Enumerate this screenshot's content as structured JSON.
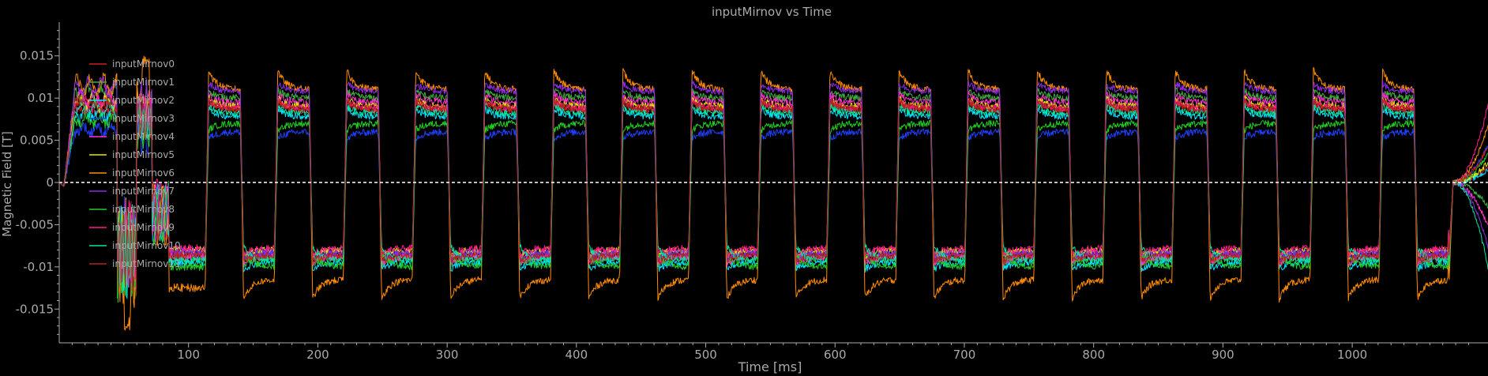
{
  "chart_data": {
    "type": "line",
    "title": "inputMirnov vs Time",
    "xlabel": "Time [ms]",
    "ylabel": "Magnetic Field [T]",
    "xlim": [
      0,
      1105
    ],
    "ylim": [
      -0.019,
      0.019
    ],
    "xticks": [
      100,
      200,
      300,
      400,
      500,
      600,
      700,
      800,
      900,
      1000
    ],
    "xtick_labels": [
      "100",
      "200",
      "300",
      "400",
      "500",
      "600",
      "700",
      "800",
      "900",
      "1000"
    ],
    "yticks": [
      0.015,
      0.01,
      0.005,
      0,
      -0.005,
      -0.01,
      -0.015
    ],
    "ytick_labels": [
      "0.015",
      "0.01",
      "0.005",
      "0",
      "-0.005",
      "-0.01",
      "-0.015"
    ],
    "grid": false,
    "legend_position": "top-left",
    "zero_line": true,
    "colors": {
      "background": "#000000",
      "axis": "#aaaaaa",
      "text": "#aaaaaa",
      "zero_line": "#ffffff"
    },
    "square_wave": {
      "first_rise_ms": 4,
      "positive_start_ms": 113,
      "period_ms": 53.4,
      "positive_duration_ms": 27,
      "cycles": 18,
      "end_ms": 1075
    },
    "series": [
      {
        "name": "inputMirnov0",
        "color": "#cc1f1f",
        "high": 0.0085,
        "low": -0.0085
      },
      {
        "name": "inputMirnov1",
        "color": "#3fae3f",
        "high": 0.01,
        "low": -0.009
      },
      {
        "name": "inputMirnov2",
        "color": "#00e5ff",
        "high": 0.0078,
        "low": -0.0095
      },
      {
        "name": "inputMirnov3",
        "color": "#1f3fff",
        "high": 0.006,
        "low": -0.0082
      },
      {
        "name": "inputMirnov4",
        "color": "#ff33cc",
        "high": 0.0095,
        "low": -0.0088
      },
      {
        "name": "inputMirnov5",
        "color": "#e6e600",
        "high": 0.009,
        "low": -0.008
      },
      {
        "name": "inputMirnov6",
        "color": "#ff8c00",
        "high": 0.011,
        "low": -0.0115
      },
      {
        "name": "inputMirnov7",
        "color": "#8a2be2",
        "high": 0.0108,
        "low": -0.0083
      },
      {
        "name": "inputMirnov8",
        "color": "#22cc22",
        "high": 0.007,
        "low": -0.01
      },
      {
        "name": "inputMirnov9",
        "color": "#ff1a8c",
        "high": 0.0088,
        "low": -0.0078
      },
      {
        "name": "inputMirnov10",
        "color": "#00e6a0",
        "high": 0.0082,
        "low": -0.0092
      },
      {
        "name": "inputMirnov11",
        "color": "#b22222",
        "high": 0.0087,
        "low": -0.0086
      }
    ]
  }
}
